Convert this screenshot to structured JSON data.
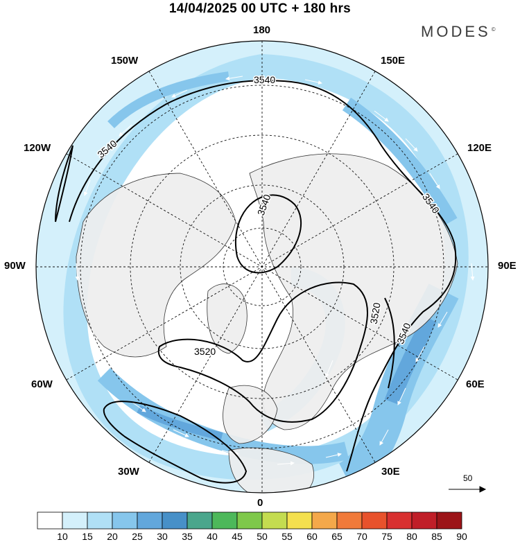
{
  "header": {
    "title": "14/04/2025  00 UTC  + 180 hrs",
    "brand": "MODES",
    "brand_mark": "©"
  },
  "longitude_labels": {
    "top": "180",
    "bottom": "0",
    "left": "90W",
    "right": "90E",
    "upper_left": "150W",
    "upper_right": "150E",
    "mid_upper_left": "120W",
    "mid_upper_right": "120E",
    "mid_lower_left": "60W",
    "mid_lower_right": "60E",
    "lower_left": "30W",
    "lower_right": "30E"
  },
  "contour_labels": {
    "c1": "3540",
    "c2": "3540",
    "c3": "3540",
    "c4": "3540",
    "c5": "3520",
    "c6": "3520",
    "c7": "3540"
  },
  "reference_vector": {
    "value": "50"
  },
  "colorbar": {
    "ticks": [
      "10",
      "15",
      "20",
      "25",
      "30",
      "35",
      "40",
      "45",
      "50",
      "55",
      "60",
      "65",
      "70",
      "75",
      "80",
      "85",
      "90"
    ],
    "colors": [
      "#ffffff",
      "#d4f0fb",
      "#b0e0f6",
      "#86c6ec",
      "#62a7dc",
      "#4790c8",
      "#4aa68c",
      "#4db85a",
      "#7ec84a",
      "#c4dc50",
      "#f4e04e",
      "#f4a84a",
      "#f07a3a",
      "#e8522c",
      "#d83030",
      "#c01e28",
      "#9c1418"
    ]
  }
}
